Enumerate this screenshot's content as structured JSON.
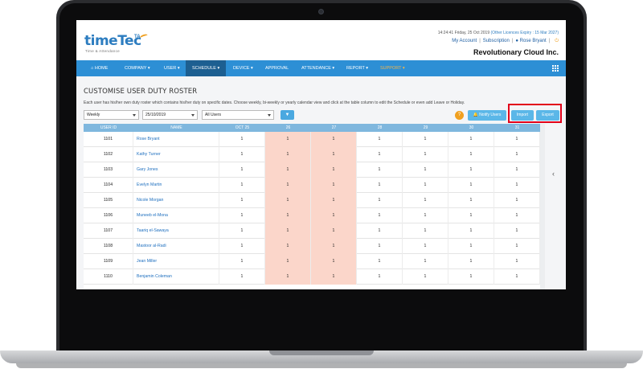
{
  "header": {
    "logo_main": "timeTec",
    "logo_ta": "TA",
    "logo_tagline": "Time & Attendance",
    "datetime": "14:24:41 Friday, 25 Oct 2019",
    "licence_text": "(Other Licences Expiry : 15 Mar 2027)",
    "my_account": "My Account",
    "subscription": "Subscription",
    "user_name": "Rose Bryant",
    "company": "Revolutionary Cloud Inc."
  },
  "nav": {
    "home": "HOME",
    "company": "COMPANY",
    "user": "USER",
    "schedule": "SCHEDULE",
    "device": "DEVICE",
    "approval": "APPROVAL",
    "attendance": "ATTENDANCE",
    "report": "REPORT",
    "support": "SUPPORT"
  },
  "page": {
    "title": "CUSTOMISE USER DUTY ROSTER",
    "description": "Each user has his/her own duty roster which contains his/her duty on specific dates. Choose weekly, bi-weekly or yearly calendar view and click at the table column to edit the Schedule or even add Leave or Holiday."
  },
  "filters": {
    "view": "Weekly",
    "date": "25/10/2019",
    "users": "All Users"
  },
  "buttons": {
    "help": "?",
    "notify": "Notify Users",
    "import": "Import",
    "export": "Export"
  },
  "table": {
    "headers": [
      "USER ID",
      "NAME",
      "OCT 25",
      "26",
      "27",
      "28",
      "29",
      "30",
      "31"
    ],
    "weekend_columns": [
      3,
      4
    ],
    "rows": [
      {
        "id": "1101",
        "name": "Rose Bryant",
        "values": [
          "1",
          "1",
          "1",
          "1",
          "1",
          "1",
          "1"
        ]
      },
      {
        "id": "1102",
        "name": "Kathy Turner",
        "values": [
          "1",
          "1",
          "1",
          "1",
          "1",
          "1",
          "1"
        ]
      },
      {
        "id": "1103",
        "name": "Gary Jones",
        "values": [
          "1",
          "1",
          "1",
          "1",
          "1",
          "1",
          "1"
        ]
      },
      {
        "id": "1104",
        "name": "Evelyn Martin",
        "values": [
          "1",
          "1",
          "1",
          "1",
          "1",
          "1",
          "1"
        ]
      },
      {
        "id": "1105",
        "name": "Nicole Morgan",
        "values": [
          "1",
          "1",
          "1",
          "1",
          "1",
          "1",
          "1"
        ]
      },
      {
        "id": "1106",
        "name": "Muneeb el-Mona",
        "values": [
          "1",
          "1",
          "1",
          "1",
          "1",
          "1",
          "1"
        ]
      },
      {
        "id": "1107",
        "name": "Taariq el-Sawaya",
        "values": [
          "1",
          "1",
          "1",
          "1",
          "1",
          "1",
          "1"
        ]
      },
      {
        "id": "1108",
        "name": "Mastoor al-Radi",
        "values": [
          "1",
          "1",
          "1",
          "1",
          "1",
          "1",
          "1"
        ]
      },
      {
        "id": "1109",
        "name": "Jean Miller",
        "values": [
          "1",
          "1",
          "1",
          "1",
          "1",
          "1",
          "1"
        ]
      },
      {
        "id": "1110",
        "name": "Benjamin Coleman",
        "values": [
          "1",
          "1",
          "1",
          "1",
          "1",
          "1",
          "1"
        ]
      }
    ]
  },
  "colors": {
    "nav_bg": "#2d8fd5",
    "nav_active": "#1d5f91",
    "table_header": "#7fb7de",
    "weekend_cell": "#fbd6ca",
    "button": "#5bb7e8",
    "highlight": "#e2001a"
  }
}
